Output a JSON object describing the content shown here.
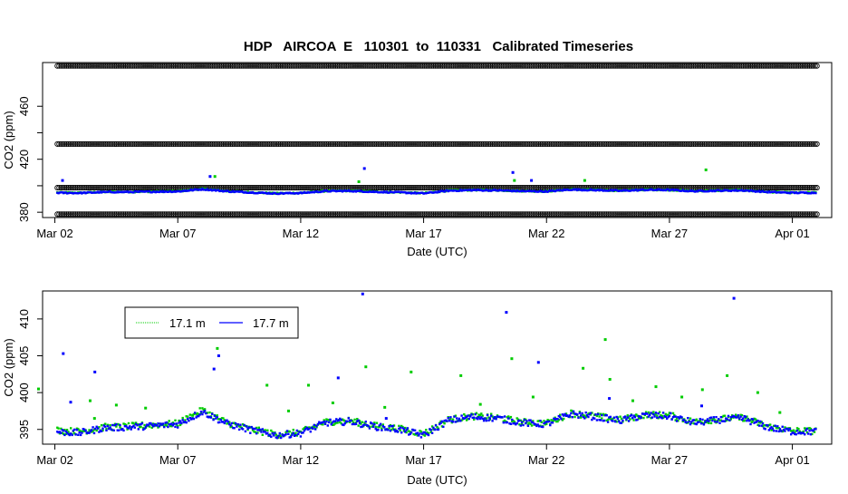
{
  "title": "HDP   AIRCOA  E   110301  to  110331   Calibrated Timeseries",
  "chart_data": [
    {
      "type": "scatter",
      "title": "HDP   AIRCOA  E   110301  to  110331   Calibrated Timeseries",
      "xlabel": "Date (UTC)",
      "ylabel": "CO2 (ppm)",
      "x_ticks": [
        "Mar 02",
        "Mar 07",
        "Mar 12",
        "Mar 17",
        "Mar 22",
        "Mar 27",
        "Apr 01"
      ],
      "y_ticks": [
        380,
        400,
        420,
        440,
        460
      ],
      "y_tick_labels": [
        "380",
        "",
        "420",
        "",
        "460"
      ],
      "xlim": [
        "2011-03-01",
        "2011-04-01"
      ],
      "ylim": [
        376,
        493
      ],
      "calibration_levels": [
        378.5,
        398.5,
        431.5,
        490.5
      ],
      "series": [
        {
          "color": "#00cc00",
          "spikes": [
            [
              "2011-03-08",
              407
            ],
            [
              "2011-03-14",
              403
            ],
            [
              "2011-03-20",
              404
            ],
            [
              "2011-03-23",
              404
            ],
            [
              "2011-03-28",
              412
            ]
          ]
        },
        {
          "color": "#0000ff",
          "spikes": [
            [
              "2011-03-02",
              404
            ],
            [
              "2011-03-08",
              407
            ],
            [
              "2011-03-14",
              413
            ],
            [
              "2011-03-20",
              410
            ],
            [
              "2011-03-21",
              404
            ]
          ]
        }
      ]
    },
    {
      "type": "scatter",
      "xlabel": "Date (UTC)",
      "ylabel": "CO2 (ppm)",
      "x_ticks": [
        "Mar 02",
        "Mar 07",
        "Mar 12",
        "Mar 17",
        "Mar 22",
        "Mar 27",
        "Apr 01"
      ],
      "y_ticks": [
        395,
        400,
        405,
        410
      ],
      "xlim": [
        "2011-03-01",
        "2011-04-01"
      ],
      "ylim": [
        393,
        413.8
      ],
      "legend": {
        "position": "top-left",
        "entries": [
          {
            "label": "17.1 m",
            "color": "#00cc00"
          },
          {
            "label": "17.7 m",
            "color": "#0000ff"
          }
        ]
      },
      "series": [
        {
          "name": "17.1 m",
          "color": "#00cc00",
          "points": [
            [
              "2011-03-01",
              394.6
            ],
            [
              "2011-03-02",
              394.9
            ],
            [
              "2011-03-03",
              394.7
            ],
            [
              "2011-03-04",
              395.3
            ],
            [
              "2011-03-05",
              395.4
            ],
            [
              "2011-03-06",
              395.6
            ],
            [
              "2011-03-07",
              395.8
            ],
            [
              "2011-03-08",
              397.6
            ],
            [
              "2011-03-09",
              395.9
            ],
            [
              "2011-03-10",
              395.0
            ],
            [
              "2011-03-11",
              394.3
            ],
            [
              "2011-03-12",
              394.6
            ],
            [
              "2011-03-13",
              396.0
            ],
            [
              "2011-03-14",
              396.2
            ],
            [
              "2011-03-15",
              395.5
            ],
            [
              "2011-03-16",
              395.1
            ],
            [
              "2011-03-17",
              394.4
            ],
            [
              "2011-03-18",
              396.3
            ],
            [
              "2011-03-19",
              396.8
            ],
            [
              "2011-03-20",
              396.6
            ],
            [
              "2011-03-21",
              396.0
            ],
            [
              "2011-03-22",
              395.8
            ],
            [
              "2011-03-23",
              397.2
            ],
            [
              "2011-03-24",
              396.8
            ],
            [
              "2011-03-25",
              396.3
            ],
            [
              "2011-03-26",
              397.0
            ],
            [
              "2011-03-27",
              396.9
            ],
            [
              "2011-03-28",
              396.0
            ],
            [
              "2011-03-29",
              396.4
            ],
            [
              "2011-03-30",
              396.6
            ],
            [
              "2011-03-31",
              395.4
            ],
            [
              "2011-04-01",
              394.8
            ]
          ],
          "spikes": [
            [
              "2011-03-01",
              400.5
            ],
            [
              "2011-03-03",
              396.5
            ],
            [
              "2011-03-03",
              398.9
            ],
            [
              "2011-03-04",
              398.3
            ],
            [
              "2011-03-05",
              397.9
            ],
            [
              "2011-03-07",
              396.9
            ],
            [
              "2011-03-08",
              406.0
            ],
            [
              "2011-03-10",
              401.0
            ],
            [
              "2011-03-11",
              397.5
            ],
            [
              "2011-03-12",
              401.0
            ],
            [
              "2011-03-13",
              398.6
            ],
            [
              "2011-03-14",
              403.5
            ],
            [
              "2011-03-15",
              398.0
            ],
            [
              "2011-03-16",
              402.8
            ],
            [
              "2011-03-18",
              402.3
            ],
            [
              "2011-03-19",
              398.4
            ],
            [
              "2011-03-20",
              404.6
            ],
            [
              "2011-03-21",
              399.4
            ],
            [
              "2011-03-23",
              403.3
            ],
            [
              "2011-03-24",
              407.2
            ],
            [
              "2011-03-24",
              401.8
            ],
            [
              "2011-03-25",
              398.9
            ],
            [
              "2011-03-26",
              400.8
            ],
            [
              "2011-03-27",
              399.4
            ],
            [
              "2011-03-28",
              400.4
            ],
            [
              "2011-03-29",
              402.3
            ],
            [
              "2011-03-30",
              400.0
            ],
            [
              "2011-03-31",
              397.3
            ]
          ]
        },
        {
          "name": "17.7 m",
          "color": "#0000ff",
          "points": [
            [
              "2011-03-01",
              394.5
            ],
            [
              "2011-03-02",
              394.7
            ],
            [
              "2011-03-03",
              394.5
            ],
            [
              "2011-03-04",
              395.2
            ],
            [
              "2011-03-05",
              395.3
            ],
            [
              "2011-03-06",
              395.5
            ],
            [
              "2011-03-07",
              395.7
            ],
            [
              "2011-03-08",
              397.4
            ],
            [
              "2011-03-09",
              395.8
            ],
            [
              "2011-03-10",
              394.9
            ],
            [
              "2011-03-11",
              394.2
            ],
            [
              "2011-03-12",
              394.5
            ],
            [
              "2011-03-13",
              395.9
            ],
            [
              "2011-03-14",
              396.1
            ],
            [
              "2011-03-15",
              395.4
            ],
            [
              "2011-03-16",
              395.0
            ],
            [
              "2011-03-17",
              394.2
            ],
            [
              "2011-03-18",
              396.2
            ],
            [
              "2011-03-19",
              396.7
            ],
            [
              "2011-03-20",
              396.5
            ],
            [
              "2011-03-21",
              395.9
            ],
            [
              "2011-03-22",
              395.7
            ],
            [
              "2011-03-23",
              397.1
            ],
            [
              "2011-03-24",
              396.7
            ],
            [
              "2011-03-25",
              396.2
            ],
            [
              "2011-03-26",
              396.9
            ],
            [
              "2011-03-27",
              396.8
            ],
            [
              "2011-03-28",
              395.9
            ],
            [
              "2011-03-29",
              396.3
            ],
            [
              "2011-03-30",
              396.5
            ],
            [
              "2011-03-31",
              395.3
            ],
            [
              "2011-04-01",
              394.7
            ]
          ],
          "spikes": [
            [
              "2011-03-02",
              405.3
            ],
            [
              "2011-03-02",
              398.7
            ],
            [
              "2011-03-03",
              402.8
            ],
            [
              "2011-03-08",
              405.0
            ],
            [
              "2011-03-08",
              408.3
            ],
            [
              "2011-03-08",
              403.2
            ],
            [
              "2011-03-13",
              402.0
            ],
            [
              "2011-03-14",
              413.4
            ],
            [
              "2011-03-15",
              396.5
            ],
            [
              "2011-03-20",
              410.9
            ],
            [
              "2011-03-21",
              404.1
            ],
            [
              "2011-03-24",
              399.2
            ],
            [
              "2011-03-28",
              398.2
            ],
            [
              "2011-03-29",
              412.8
            ]
          ]
        }
      ]
    }
  ]
}
